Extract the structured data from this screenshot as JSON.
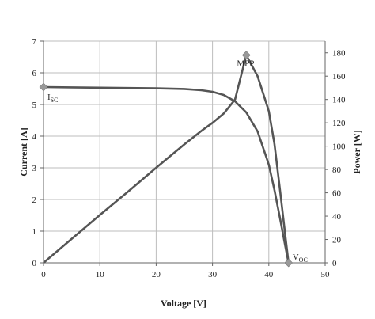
{
  "chart_data": {
    "type": "line",
    "xlabel": "Voltage [V]",
    "ylabel": "Current [A]",
    "y2label": "Power [W]",
    "xlim": [
      0,
      50
    ],
    "ylim": [
      0,
      7
    ],
    "y2lim": [
      0,
      190
    ],
    "x_ticks": [
      0,
      10,
      20,
      30,
      40,
      50
    ],
    "y_ticks": [
      0,
      1,
      2,
      3,
      4,
      5,
      6,
      7
    ],
    "y2_ticks": [
      0,
      20,
      40,
      60,
      80,
      100,
      120,
      140,
      160,
      180
    ],
    "grid": true,
    "series": [
      {
        "axis": "left",
        "x": [
          0,
          5,
          10,
          15,
          20,
          25,
          28,
          30,
          32,
          34,
          36,
          38,
          40,
          41,
          42,
          43,
          43.5
        ],
        "y": [
          5.55,
          5.54,
          5.53,
          5.52,
          5.51,
          5.49,
          5.45,
          5.4,
          5.3,
          5.1,
          4.75,
          4.15,
          3.1,
          2.3,
          1.4,
          0.45,
          0
        ],
        "color": "#555555"
      },
      {
        "axis": "right",
        "x": [
          0,
          5,
          10,
          15,
          20,
          25,
          28,
          30,
          32,
          34,
          36,
          38,
          40,
          41,
          42,
          43,
          43.5
        ],
        "y": [
          0,
          20.5,
          41,
          61,
          81.5,
          101.5,
          113,
          120,
          128,
          140,
          178,
          160,
          130,
          102,
          62,
          20,
          0
        ],
        "color": "#555555"
      }
    ],
    "points": [
      {
        "axis": "left",
        "x": 0,
        "y": 5.55,
        "label": "I",
        "sub": "SC"
      },
      {
        "axis": "right",
        "x": 36,
        "y": 178,
        "label": "MPP",
        "sub": ""
      },
      {
        "axis": "left",
        "x": 43.5,
        "y": 0,
        "label": "V",
        "sub": "OC"
      }
    ],
    "marker_color": "#999999"
  }
}
